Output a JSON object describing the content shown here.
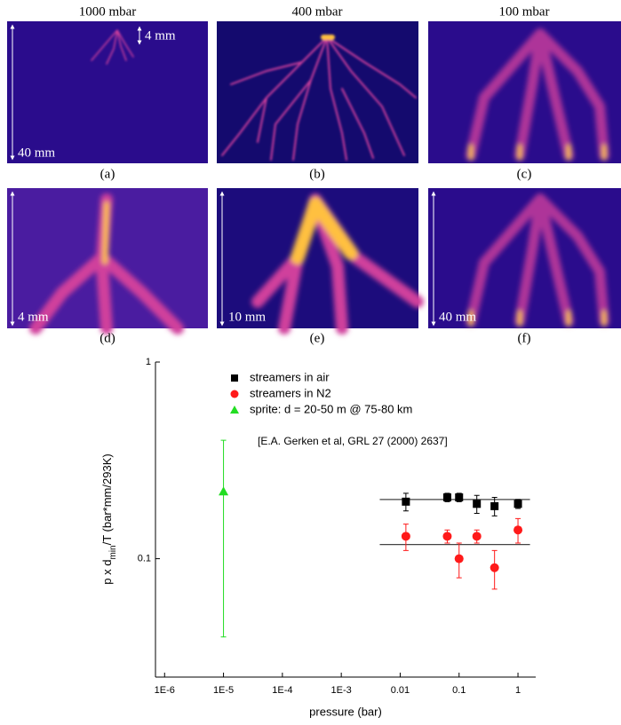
{
  "panels": [
    {
      "title": "1000 mbar",
      "scale": "40 mm",
      "scale_small": "4 mm",
      "caption": "(a)"
    },
    {
      "title": "400 mbar",
      "caption": "(b)"
    },
    {
      "title": "100 mbar",
      "caption": "(c)"
    },
    {
      "scale": "4 mm",
      "caption": "(d)"
    },
    {
      "scale": "10 mm",
      "caption": "(e)"
    },
    {
      "scale": "40 mm",
      "caption": "(f)"
    }
  ],
  "chart_data": {
    "type": "scatter",
    "xlabel": "pressure (bar)",
    "ylabel": [
      "p x d",
      "min",
      "/T (bar*mm/293K)"
    ],
    "xlog": true,
    "ylog": true,
    "xlim": [
      7e-07,
      2
    ],
    "ylim": [
      0.025,
      1
    ],
    "xticks": [
      {
        "value": 1e-06,
        "label": "1E-6"
      },
      {
        "value": 1e-05,
        "label": "1E-5"
      },
      {
        "value": 0.0001,
        "label": "1E-4"
      },
      {
        "value": 0.001,
        "label": "1E-3"
      },
      0.01,
      0.1,
      1
    ],
    "yticks": [
      0.1,
      1
    ],
    "series": [
      {
        "name": "streamers in air",
        "color": "#000000",
        "marker": "square",
        "x": [
          0.0125,
          0.063,
          0.1,
          0.2,
          0.4,
          1
        ],
        "values": [
          0.195,
          0.205,
          0.205,
          0.19,
          0.185,
          0.19
        ],
        "errors": [
          0.02,
          0.01,
          0.01,
          0.02,
          0.02,
          0.01
        ]
      },
      {
        "name": "streamers in N2",
        "color": "#ff1a1a",
        "marker": "circle",
        "x": [
          0.0125,
          0.063,
          0.1,
          0.2,
          0.4,
          1
        ],
        "values": [
          0.13,
          0.13,
          0.1,
          0.13,
          0.09,
          0.14
        ],
        "errors": [
          0.02,
          0.01,
          0.02,
          0.01,
          0.02,
          0.02
        ]
      },
      {
        "name": "sprite: d = 20-50 m @ 75-80 km",
        "color": "#22dd22",
        "marker": "triangle",
        "x": [
          1e-05
        ],
        "values": [
          0.22
        ],
        "errors": [
          0.18
        ]
      }
    ],
    "fit_lines": [
      {
        "y": 0.2,
        "x": [
          0.0045,
          1.6
        ]
      },
      {
        "y": 0.118,
        "x": [
          0.0045,
          1.6
        ]
      }
    ],
    "annotation": "[E.A. Gerken et al, GRL 27 (2000) 2637]"
  }
}
